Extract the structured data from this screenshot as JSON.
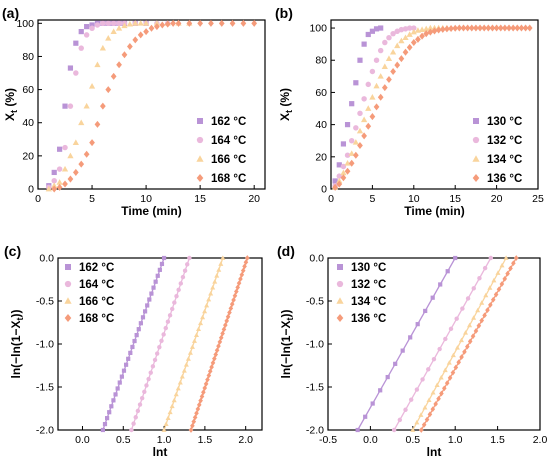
{
  "series_styles": [
    {
      "color": "#b993d6",
      "marker": "square"
    },
    {
      "color": "#eab8dc",
      "marker": "circle"
    },
    {
      "color": "#f9d49c",
      "marker": "triangle"
    },
    {
      "color": "#f59b7a",
      "marker": "diamond"
    }
  ],
  "chart_data": [
    {
      "panel": "(a)",
      "type": "scatter",
      "xlabel": "Time (min)",
      "ylabel": "X_t (%)",
      "xlim": [
        0,
        21
      ],
      "ylim": [
        0,
        102
      ],
      "xticks": [
        0,
        5,
        10,
        15,
        20
      ],
      "yticks": [
        0,
        20,
        40,
        60,
        80,
        100
      ],
      "legend_position": "bottom-right",
      "series": [
        {
          "name": "162 °C",
          "x": [
            1,
            1.5,
            2,
            2.5,
            3,
            3.5,
            4,
            4.5,
            5,
            5.5,
            6,
            6.5,
            7,
            7.5,
            8,
            9,
            10
          ],
          "y": [
            2,
            10,
            24,
            50,
            73,
            88,
            95,
            98,
            99,
            100,
            100,
            100,
            100,
            100,
            100,
            100,
            100
          ]
        },
        {
          "name": "164 °C",
          "x": [
            1,
            1.5,
            2,
            2.5,
            3,
            3.5,
            4,
            4.5,
            5,
            5.5,
            6,
            6.5,
            7,
            7.5,
            8,
            9,
            10,
            11,
            12
          ],
          "y": [
            1,
            5,
            12,
            25,
            50,
            70,
            85,
            93,
            97,
            99,
            100,
            100,
            100,
            100,
            100,
            100,
            100,
            100,
            100
          ]
        },
        {
          "name": "166 °C",
          "x": [
            1,
            1.5,
            2,
            2.5,
            3,
            3.5,
            4,
            4.5,
            5,
            5.5,
            6,
            6.5,
            7,
            7.5,
            8,
            8.5,
            9,
            9.5,
            10,
            11,
            12,
            13,
            14
          ],
          "y": [
            0,
            2,
            4,
            12,
            20,
            28,
            40,
            50,
            62,
            75,
            85,
            91,
            95,
            97,
            98.5,
            99.5,
            100,
            100,
            100,
            100,
            100,
            100,
            100
          ]
        },
        {
          "name": "168 °C",
          "x": [
            1.5,
            2,
            2.5,
            3,
            3.5,
            4,
            4.5,
            5,
            5.5,
            6,
            6.5,
            7,
            7.5,
            8,
            8.5,
            9,
            9.5,
            10,
            10.5,
            11,
            11.5,
            12,
            12.5,
            13,
            14,
            15,
            16,
            17,
            18,
            19,
            20
          ],
          "y": [
            0,
            1,
            3,
            6,
            10,
            15,
            21,
            28,
            39,
            50,
            60,
            68,
            75,
            81,
            86,
            90,
            93,
            95,
            97,
            98,
            99,
            99.5,
            100,
            100,
            100,
            100,
            100,
            100,
            100,
            100,
            100
          ]
        }
      ]
    },
    {
      "panel": "(b)",
      "type": "scatter",
      "xlabel": "Time (min)",
      "ylabel": "X_t (%)",
      "xlim": [
        0,
        25
      ],
      "ylim": [
        0,
        105
      ],
      "xticks": [
        0,
        5,
        10,
        15,
        20,
        25
      ],
      "yticks": [
        0,
        20,
        40,
        60,
        80,
        100
      ],
      "legend_position": "bottom-right",
      "series": [
        {
          "name": "130 °C",
          "x": [
            0.5,
            1,
            1.5,
            2,
            2.5,
            3,
            3.5,
            4,
            4.5,
            5,
            5.5,
            6
          ],
          "y": [
            5,
            15,
            28,
            40,
            53,
            66,
            80,
            90,
            96,
            98,
            99.5,
            100
          ]
        },
        {
          "name": "132 °C",
          "x": [
            0.5,
            1,
            1.5,
            2,
            2.5,
            3,
            3.5,
            4,
            4.5,
            5,
            5.5,
            6,
            6.5,
            7,
            7.5,
            8,
            8.5,
            9,
            9.5,
            10
          ],
          "y": [
            2,
            8,
            14,
            21,
            30,
            38,
            47,
            56,
            65,
            73,
            80,
            86,
            91,
            94,
            96.5,
            98,
            99,
            99.5,
            100,
            100
          ]
        },
        {
          "name": "134 °C",
          "x": [
            0.5,
            1,
            1.5,
            2,
            2.5,
            3,
            3.5,
            4,
            4.5,
            5,
            5.5,
            6,
            6.5,
            7,
            7.5,
            8,
            8.5,
            9,
            9.5,
            10,
            10.5,
            11,
            11.5,
            12,
            12.5,
            13,
            13.5,
            14
          ],
          "y": [
            1,
            5,
            10,
            16,
            22,
            29,
            36,
            43,
            50,
            57,
            64,
            70,
            76,
            81,
            85,
            89,
            92,
            94,
            96,
            97.5,
            98.5,
            99,
            99.5,
            100,
            100,
            100,
            100,
            100
          ]
        },
        {
          "name": "136 °C",
          "x": [
            0.5,
            1,
            1.5,
            2,
            2.5,
            3,
            3.5,
            4,
            4.5,
            5,
            5.5,
            6,
            6.5,
            7,
            7.5,
            8,
            8.5,
            9,
            9.5,
            10,
            10.5,
            11,
            11.5,
            12,
            12.5,
            13,
            13.5,
            14,
            14.5,
            15,
            15.5,
            16,
            16.5,
            17,
            17.5,
            18,
            18.5,
            19,
            19.5,
            20,
            20.5,
            21,
            21.5,
            22,
            22.5,
            23,
            23.5,
            24
          ],
          "y": [
            1,
            3,
            7,
            11,
            16,
            21,
            27,
            33,
            39,
            45,
            51,
            57,
            63,
            68,
            73,
            77,
            81,
            85,
            88,
            91,
            93,
            95,
            96.5,
            97.5,
            98.2,
            98.8,
            99.2,
            99.5,
            99.7,
            99.9,
            100,
            100,
            100,
            100,
            100,
            100,
            100,
            100,
            100,
            100,
            100,
            100,
            100,
            100,
            100,
            100,
            100,
            100
          ]
        }
      ]
    },
    {
      "panel": "(c)",
      "type": "scatter",
      "xlabel": "lnt",
      "ylabel": "ln(−ln(1−X_t))",
      "xlim": [
        -0.3,
        2.2
      ],
      "ylim": [
        -2.0,
        0.0
      ],
      "xticks": [
        0.0,
        0.5,
        1.0,
        1.5,
        2.0
      ],
      "yticks": [
        0.0,
        -0.5,
        -1.0,
        -1.5,
        -2.0
      ],
      "xtick_labels": [
        "0.0",
        "0.5",
        "1.0",
        "1.5",
        "2.0"
      ],
      "ytick_labels": [
        "0.0",
        "-0.5",
        "-1.0",
        "-1.5",
        "-2.0"
      ],
      "legend_position": "top-left",
      "series": [
        {
          "name": "162 °C",
          "fit": {
            "x": [
              0.25,
              1.0
            ],
            "y": [
              -2.0,
              0.0
            ]
          },
          "x_range": [
            0.25,
            1.0
          ],
          "n_points": 30
        },
        {
          "name": "164 °C",
          "fit": {
            "x": [
              0.6,
              1.31
            ],
            "y": [
              -2.0,
              0.0
            ]
          },
          "x_range": [
            0.6,
            1.31
          ],
          "n_points": 28
        },
        {
          "name": "166 °C",
          "fit": {
            "x": [
              1.0,
              1.72
            ],
            "y": [
              -2.0,
              0.0
            ]
          },
          "x_range": [
            1.0,
            1.72
          ],
          "n_points": 30
        },
        {
          "name": "168 °C",
          "fit": {
            "x": [
              1.33,
              2.02
            ],
            "y": [
              -2.0,
              0.0
            ]
          },
          "x_range": [
            1.33,
            2.02
          ],
          "n_points": 42
        }
      ]
    },
    {
      "panel": "(d)",
      "type": "scatter",
      "xlabel": "lnt",
      "ylabel": "ln(−ln(1−X_t))",
      "xlim": [
        -0.5,
        2.0
      ],
      "ylim": [
        -2.0,
        0.0
      ],
      "xticks": [
        -0.5,
        0.0,
        0.5,
        1.0,
        1.5,
        2.0
      ],
      "yticks": [
        0.0,
        -0.5,
        -1.0,
        -1.5,
        -2.0
      ],
      "xtick_labels": [
        "-0.5",
        "0.0",
        "0.5",
        "1.0",
        "1.5",
        "2.0"
      ],
      "ytick_labels": [
        "0.0",
        "-0.5",
        "-1.0",
        "-1.5",
        "-2.0"
      ],
      "legend_position": "top-left",
      "series": [
        {
          "name": "130 °C",
          "fit": {
            "x": [
              -0.15,
              1.0
            ],
            "y": [
              -2.0,
              0.0
            ]
          },
          "x_range": [
            -0.15,
            1.0
          ],
          "n_points": 14
        },
        {
          "name": "132 °C",
          "fit": {
            "x": [
              0.28,
              1.42
            ],
            "y": [
              -2.0,
              0.0
            ]
          },
          "x_range": [
            0.28,
            1.42
          ],
          "n_points": 18
        },
        {
          "name": "134 °C",
          "fit": {
            "x": [
              0.5,
              1.6
            ],
            "y": [
              -2.0,
              0.0
            ]
          },
          "x_range": [
            0.5,
            1.6
          ],
          "n_points": 24
        },
        {
          "name": "136 °C",
          "fit": {
            "x": [
              0.6,
              1.72
            ],
            "y": [
              -2.0,
              0.0
            ]
          },
          "x_range": [
            0.6,
            1.72
          ],
          "n_points": 34
        }
      ]
    }
  ]
}
